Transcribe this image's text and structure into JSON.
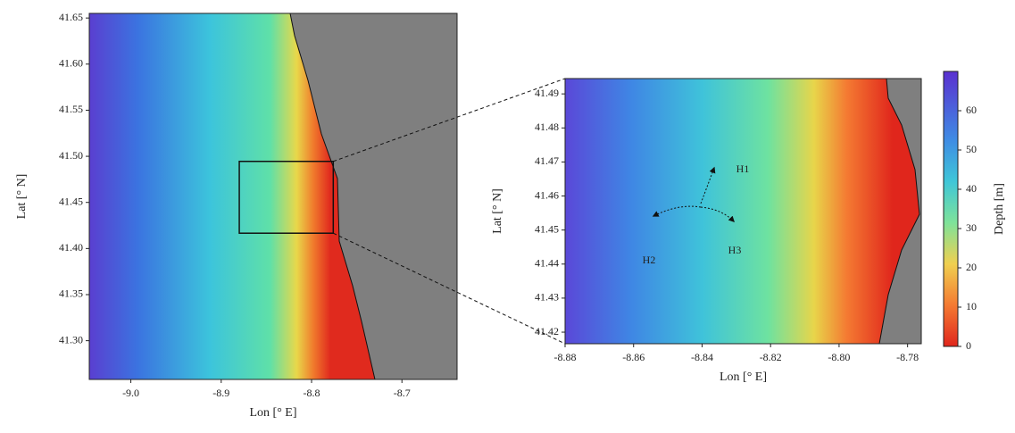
{
  "maps": [
    {
      "xlabel": "Lon [° E]",
      "ylabel": "Lat [° N]",
      "xlim": [
        -9.046,
        -8.639
      ],
      "xticks": [
        {
          "value": -9.0,
          "label": "-9.0"
        },
        -8.9,
        -8.8,
        -8.7
      ],
      "ylim": [
        41.258,
        41.655
      ],
      "yticks": [
        41.65,
        {
          "value": 41.6,
          "label": "41.60"
        },
        41.55,
        {
          "value": 41.5,
          "label": "41.50"
        },
        41.45,
        {
          "value": 41.4,
          "label": "41.40"
        },
        41.35,
        {
          "value": 41.3,
          "label": "41.30"
        }
      ]
    },
    {
      "xlabel": "Lon [° E]",
      "ylabel": "Lat [° N]",
      "xlim": [
        -8.88,
        -8.776
      ],
      "xticks": [
        -8.88,
        -8.86,
        -8.84,
        -8.82,
        {
          "value": -8.8,
          "label": "-8.80"
        },
        -8.78
      ],
      "ylim": [
        41.4166,
        41.4945
      ],
      "yticks": [
        41.49,
        41.48,
        41.47,
        41.46,
        41.45,
        41.44,
        41.43,
        41.42
      ],
      "labels": [
        "H1",
        "H2",
        "H3"
      ]
    }
  ],
  "colorbar": {
    "label": "Depth [m]",
    "lim": [
      0,
      70
    ],
    "ticks": [
      0,
      10,
      20,
      30,
      40,
      50,
      60
    ]
  }
}
